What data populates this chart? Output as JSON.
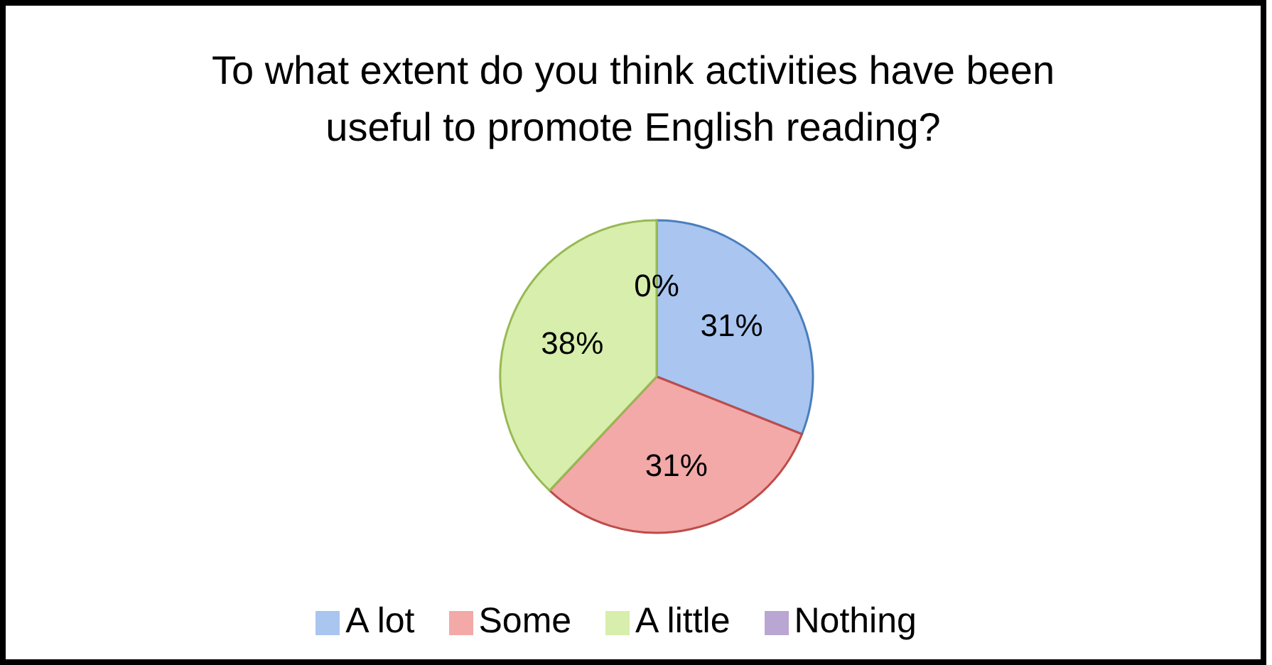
{
  "chart_data": {
    "type": "pie",
    "title": "To what extent do you think activities have been useful to promote English reading?",
    "categories": [
      "A lot",
      "Some",
      "A little",
      "Nothing"
    ],
    "values": [
      31,
      31,
      38,
      0
    ],
    "value_labels": [
      "31%",
      "31%",
      "38%",
      "0%"
    ],
    "colors": [
      "#a9c5f0",
      "#f2a9a8",
      "#d8eeac",
      "#b9a6d3"
    ],
    "legend": "bottom"
  }
}
